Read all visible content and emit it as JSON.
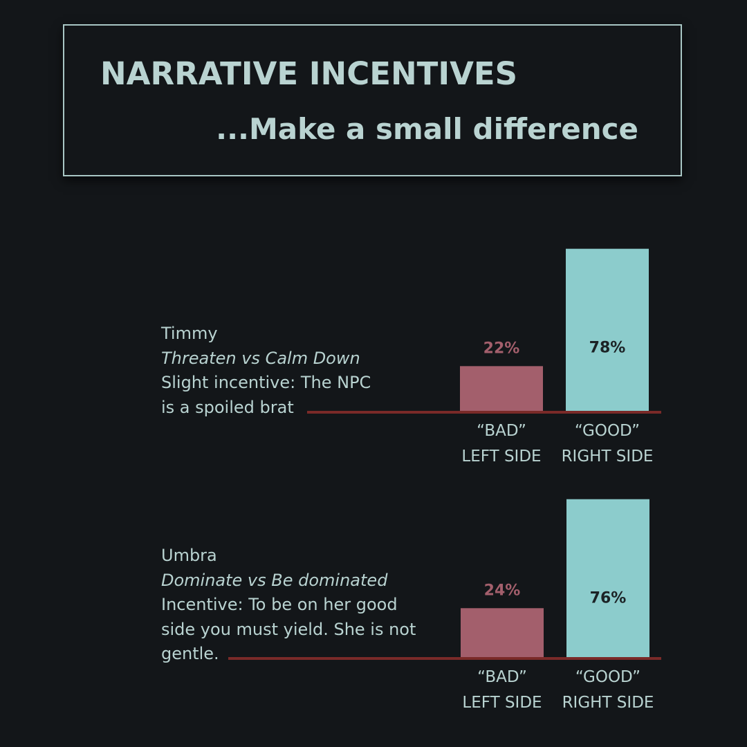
{
  "header": {
    "title": "NARRATIVE INCENTIVES",
    "subtitle": "...Make a small difference"
  },
  "colors": {
    "bad": "#a35f6c",
    "good": "#8ccccc",
    "baseline": "#7a2a28",
    "good_label": "#1c2326"
  },
  "chart_data": [
    {
      "type": "bar",
      "title": "Timmy",
      "subtitle": "Threaten vs Calm Down",
      "description": [
        "Slight incentive: The NPC",
        "is a spoiled brat"
      ],
      "categories": [
        [
          "“BAD”",
          "LEFT SIDE"
        ],
        [
          "“GOOD”",
          "RIGHT SIDE"
        ]
      ],
      "values": [
        22,
        78
      ],
      "labels": [
        "22%",
        "78%"
      ],
      "ylim": [
        0,
        100
      ]
    },
    {
      "type": "bar",
      "title": "Umbra",
      "subtitle": "Dominate vs Be dominated",
      "description": [
        "Incentive: To be on her good",
        "side you must yield. She is not",
        "gentle."
      ],
      "categories": [
        [
          "“BAD”",
          "LEFT SIDE"
        ],
        [
          "“GOOD”",
          "RIGHT SIDE"
        ]
      ],
      "values": [
        24,
        76
      ],
      "labels": [
        "24%",
        "76%"
      ],
      "ylim": [
        0,
        100
      ]
    }
  ]
}
